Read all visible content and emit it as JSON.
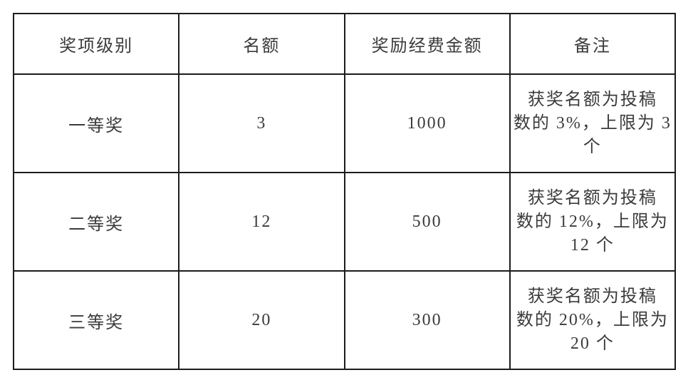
{
  "document": {
    "background_color": "#ffffff",
    "text_color": "#3b3b3b",
    "border_color": "#1c1c1c"
  },
  "table": {
    "columns": [
      {
        "key": "level",
        "label": "奖项级别"
      },
      {
        "key": "quota",
        "label": "名额"
      },
      {
        "key": "amount",
        "label": "奖励经费金额"
      },
      {
        "key": "remark",
        "label": "备注"
      }
    ],
    "rows": [
      {
        "level": "一等奖",
        "quota": "3",
        "amount": "1000",
        "remark": "获奖名额为投稿\n数的 3%，上限为 3\n个"
      },
      {
        "level": "二等奖",
        "quota": "12",
        "amount": "500",
        "remark": "获奖名额为投稿\n数的 12%，上限为\n12 个"
      },
      {
        "level": "三等奖",
        "quota": "20",
        "amount": "300",
        "remark": "获奖名额为投稿\n数的 20%，上限为\n20 个"
      }
    ]
  },
  "chart_data": {
    "type": "table",
    "columns": [
      "奖项级别",
      "名额",
      "奖励经费金额",
      "备注"
    ],
    "rows": [
      [
        "一等奖",
        "3",
        "1000",
        "获奖名额为投稿数的 3%，上限为 3 个"
      ],
      [
        "二等奖",
        "12",
        "500",
        "获奖名额为投稿数的 12%，上限为 12 个"
      ],
      [
        "三等奖",
        "20",
        "300",
        "获奖名额为投稿数的 20%，上限为 20 个"
      ]
    ]
  }
}
